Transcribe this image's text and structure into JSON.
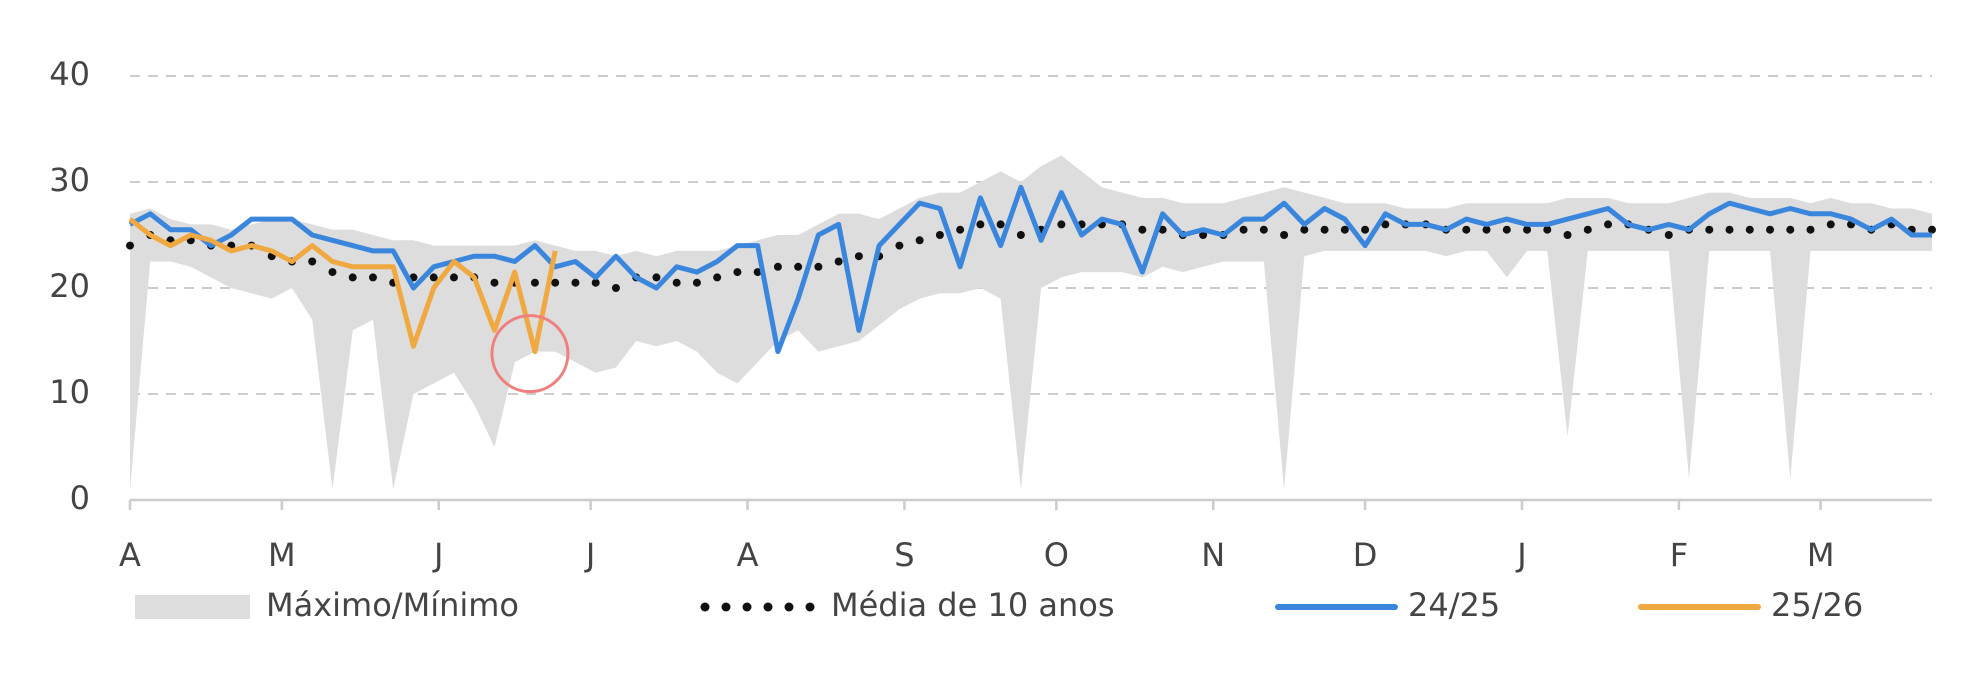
{
  "chart_data": {
    "type": "line",
    "x": [
      0,
      4,
      8,
      12,
      16,
      20,
      24,
      28,
      32,
      36,
      40,
      44,
      48,
      52,
      56,
      60,
      64,
      68,
      72,
      76,
      80,
      84,
      88,
      92,
      96,
      100,
      104,
      108,
      112,
      116,
      120,
      124,
      128,
      132,
      136,
      140,
      144,
      148,
      152,
      156,
      160,
      164,
      168,
      172,
      176,
      180,
      184,
      188,
      192,
      196,
      200,
      204,
      208,
      212,
      216,
      220,
      224,
      228,
      232,
      236,
      240,
      244,
      248,
      252,
      256,
      260,
      264,
      268,
      272,
      276,
      280,
      284,
      288,
      292,
      296,
      300,
      304,
      308,
      312,
      316,
      320,
      324,
      328,
      332,
      336,
      340,
      344,
      348,
      352,
      356
    ],
    "xlim": [
      0,
      356
    ],
    "xticks": [
      {
        "value": 0,
        "label": "A"
      },
      {
        "value": 30,
        "label": "M"
      },
      {
        "value": 61,
        "label": "J"
      },
      {
        "value": 91,
        "label": "J"
      },
      {
        "value": 122,
        "label": "A"
      },
      {
        "value": 153,
        "label": "S"
      },
      {
        "value": 183,
        "label": "O"
      },
      {
        "value": 214,
        "label": "N"
      },
      {
        "value": 244,
        "label": "D"
      },
      {
        "value": 275,
        "label": "J"
      },
      {
        "value": 306,
        "label": "F"
      },
      {
        "value": 334,
        "label": "M"
      }
    ],
    "ylim": [
      0,
      40
    ],
    "yticks": [
      0,
      10,
      20,
      30,
      40
    ],
    "grid": true,
    "series": [
      {
        "name": "Máximo/Mínimo",
        "color": "#dddddd",
        "upper": [
          27,
          27.5,
          26.5,
          26,
          26,
          25.5,
          26,
          26.5,
          26.5,
          26,
          25.5,
          25.5,
          25,
          24.5,
          24.5,
          24,
          24,
          24,
          24,
          24,
          24.5,
          24,
          23.5,
          23.5,
          23,
          23.5,
          23,
          23.5,
          23.5,
          23.5,
          24,
          24.5,
          25,
          25,
          26,
          27,
          27,
          26.5,
          27.5,
          28.5,
          29,
          29,
          30,
          31,
          30,
          31.5,
          32.5,
          31,
          29.5,
          29,
          28.5,
          28.5,
          28,
          28,
          28,
          28.5,
          29,
          29.5,
          29,
          28.5,
          28,
          28,
          28,
          27.5,
          27.5,
          27.5,
          28,
          28,
          28,
          28,
          28,
          28.5,
          28.5,
          28.5,
          28,
          28,
          28,
          28.5,
          29,
          29,
          28.5,
          28.5,
          28.5,
          28,
          28.5,
          28,
          28,
          27.5,
          27.5,
          27
        ],
        "lower": [
          1,
          22.5,
          22.5,
          22,
          21,
          20,
          19.5,
          19,
          20,
          17,
          1,
          16,
          17,
          1,
          10,
          11,
          12,
          9,
          5,
          13,
          14,
          14,
          13,
          12,
          12.5,
          15,
          14.5,
          15,
          14,
          12,
          11,
          13,
          15,
          16,
          14,
          14.5,
          15,
          16.5,
          18,
          19,
          19.5,
          19.5,
          20,
          19,
          1,
          20,
          21,
          21.5,
          21.5,
          21.5,
          21,
          22,
          21.5,
          22,
          22.5,
          22.5,
          22.5,
          1,
          23,
          23.5,
          23.5,
          23.5,
          23.5,
          23.5,
          23.5,
          23,
          23.5,
          23.5,
          21,
          23.5,
          23.5,
          6,
          23.5,
          23.5,
          23.5,
          23.5,
          23.5,
          2,
          23.5,
          23.5,
          23.5,
          23.5,
          2,
          23.5,
          23.5,
          23.5,
          23.5,
          23.5,
          23.5,
          23.5
        ]
      },
      {
        "name": "Média de 10 anos",
        "color": "#111111",
        "style": "dotted",
        "values": [
          24,
          25,
          24.5,
          24.5,
          24,
          24,
          24,
          23,
          22.5,
          22.5,
          21.5,
          21,
          21,
          20.5,
          21,
          21,
          21,
          21,
          20.5,
          20.5,
          20.5,
          20.5,
          20.5,
          20.5,
          20,
          21,
          21,
          20.5,
          20.5,
          21,
          21.5,
          21.5,
          22,
          22,
          22,
          22.5,
          23,
          23,
          24,
          24.5,
          25,
          25.5,
          26,
          26,
          25,
          25.5,
          26,
          26,
          26,
          26,
          25.5,
          25.5,
          25,
          25,
          25,
          25.5,
          25.5,
          25,
          25.5,
          25.5,
          25.5,
          25.5,
          26,
          26,
          26,
          25.5,
          25.5,
          25.5,
          25.5,
          25.5,
          25.5,
          25,
          25.5,
          26,
          26,
          25.5,
          25,
          25.5,
          25.5,
          25.5,
          25.5,
          25.5,
          25.5,
          25.5,
          26,
          26,
          25.5,
          26,
          25.5,
          25.5
        ]
      },
      {
        "name": "24/25",
        "color": "#3a86dc",
        "values": [
          26,
          27,
          25.5,
          25.5,
          24,
          25,
          26.5,
          26.5,
          26.5,
          25,
          24.5,
          24,
          23.5,
          23.5,
          20,
          22,
          22.5,
          23,
          23,
          22.5,
          24,
          22,
          22.5,
          21,
          23,
          21,
          20,
          22,
          21.5,
          22.5,
          24,
          24,
          14,
          19,
          25,
          26,
          16,
          24,
          26,
          28,
          27.5,
          22,
          28.5,
          24,
          29.5,
          24.5,
          29,
          25,
          26.5,
          26,
          21.5,
          27,
          25,
          25.5,
          25,
          26.5,
          26.5,
          28,
          26,
          27.5,
          26.5,
          24,
          27,
          26,
          26,
          25.5,
          26.5,
          26,
          26.5,
          26,
          26,
          26.5,
          27,
          27.5,
          26,
          25.5,
          26,
          25.5,
          27,
          28,
          27.5,
          27,
          27.5,
          27,
          27,
          26.5,
          25.5,
          26.5,
          25,
          25
        ]
      },
      {
        "name": "25/26",
        "color": "#f0a941",
        "values": [
          26.5,
          25,
          24,
          25,
          24.5,
          23.5,
          24,
          23.5,
          22.5,
          24,
          22.5,
          22,
          22,
          22,
          14.5,
          20,
          22.5,
          21,
          16,
          21.5,
          14,
          23.5,
          null,
          null,
          null,
          null,
          null,
          null,
          null,
          null,
          null,
          null,
          null,
          null,
          null,
          null,
          null,
          null,
          null,
          null,
          null,
          null,
          null,
          null,
          null,
          null,
          null,
          null,
          null,
          null,
          null,
          null,
          null,
          null,
          null,
          null,
          null,
          null,
          null,
          null,
          null,
          null,
          null,
          null,
          null,
          null,
          null,
          null,
          null,
          null,
          null,
          null,
          null,
          null,
          null,
          null,
          null,
          null,
          null,
          null,
          null,
          null,
          null,
          null,
          null,
          null,
          null,
          null,
          null,
          null
        ]
      }
    ]
  }
}
